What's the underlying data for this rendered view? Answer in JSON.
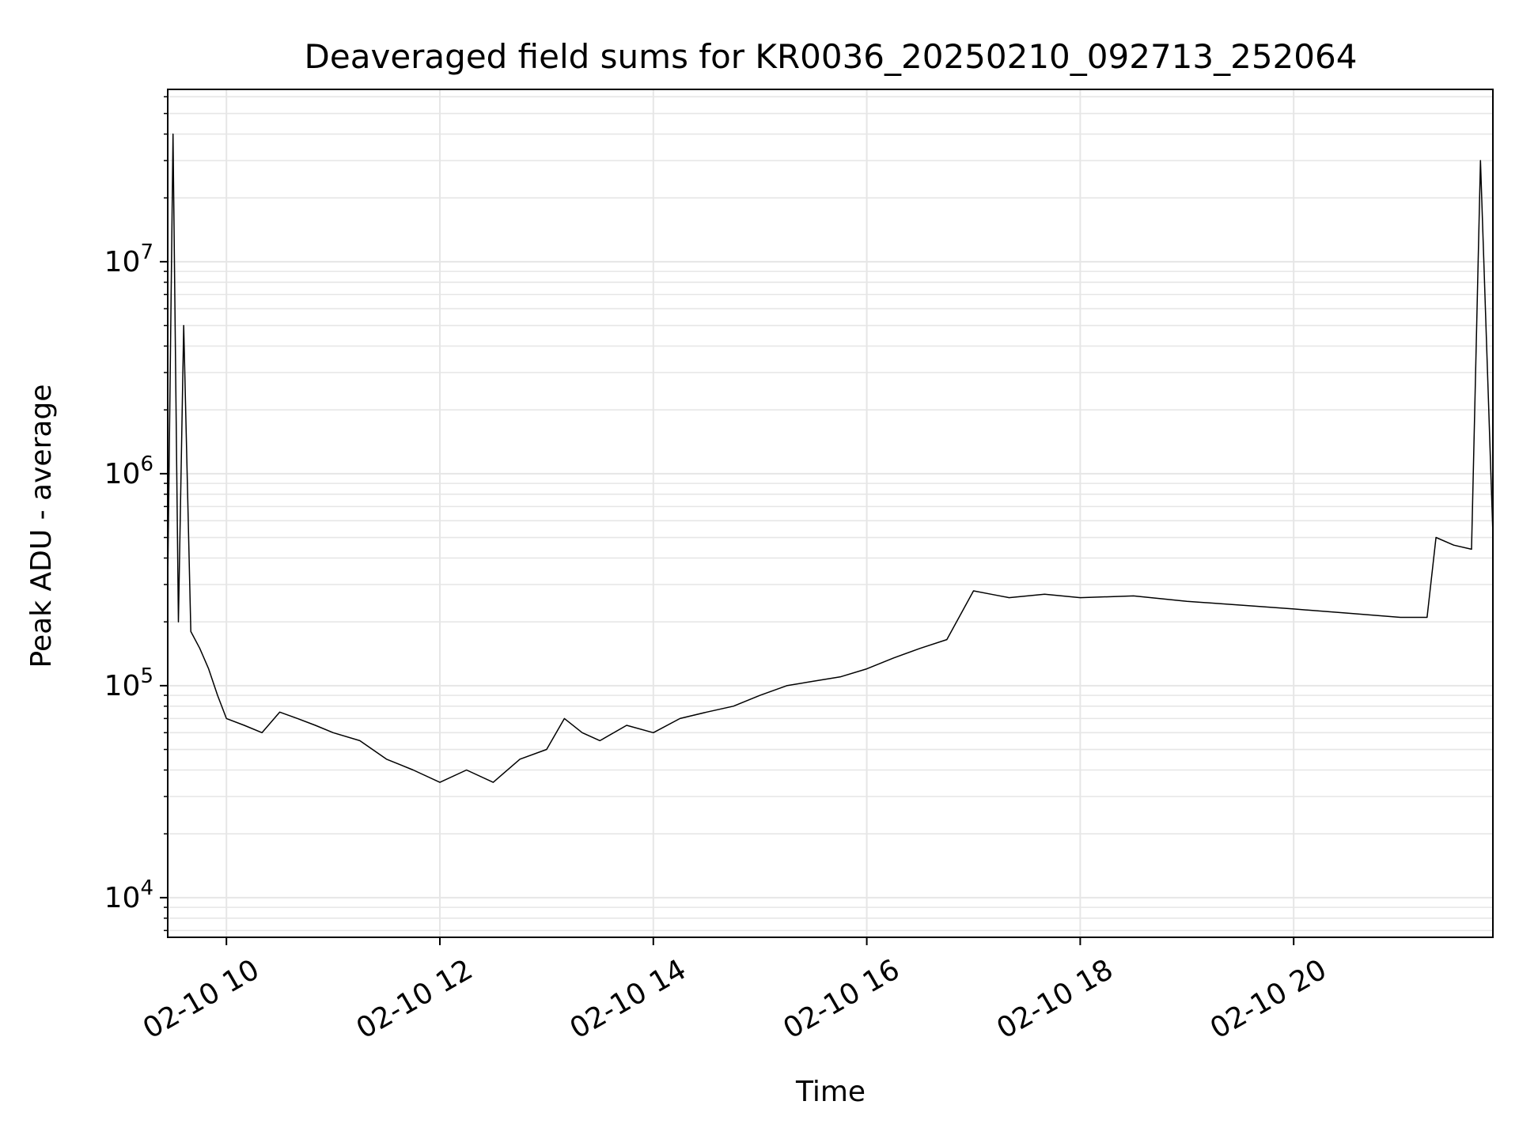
{
  "chart_data": {
    "type": "line",
    "title": "Deaveraged field sums for KR0036_20250210_092713_252064",
    "xlabel": "Time",
    "ylabel": "Peak ADU - average",
    "yscale": "log",
    "xlim": [
      "02-10 09:27",
      "02-10 21:52"
    ],
    "ylim": [
      6500,
      65000000
    ],
    "grid": true,
    "line_color": "#000000",
    "x_ticks": [
      "02-10 10",
      "02-10 12",
      "02-10 14",
      "02-10 16",
      "02-10 18",
      "02-10 20"
    ],
    "y_ticks": [
      {
        "base": "10",
        "exp": "4"
      },
      {
        "base": "10",
        "exp": "5"
      },
      {
        "base": "10",
        "exp": "6"
      },
      {
        "base": "10",
        "exp": "7"
      }
    ],
    "series": [
      {
        "x": [
          "02-10 09:27",
          "02-10 09:30",
          "02-10 09:33",
          "02-10 09:36",
          "02-10 09:40",
          "02-10 09:45",
          "02-10 09:50",
          "02-10 09:55",
          "02-10 10:00",
          "02-10 10:10",
          "02-10 10:20",
          "02-10 10:30",
          "02-10 10:40",
          "02-10 10:50",
          "02-10 11:00",
          "02-10 11:15",
          "02-10 11:30",
          "02-10 11:45",
          "02-10 12:00",
          "02-10 12:15",
          "02-10 12:30",
          "02-10 12:45",
          "02-10 13:00",
          "02-10 13:10",
          "02-10 13:20",
          "02-10 13:30",
          "02-10 13:45",
          "02-10 14:00",
          "02-10 14:15",
          "02-10 14:30",
          "02-10 14:45",
          "02-10 15:00",
          "02-10 15:15",
          "02-10 15:30",
          "02-10 15:45",
          "02-10 16:00",
          "02-10 16:15",
          "02-10 16:30",
          "02-10 16:45",
          "02-10 17:00",
          "02-10 17:10",
          "02-10 17:20",
          "02-10 17:40",
          "02-10 18:00",
          "02-10 18:30",
          "02-10 19:00",
          "02-10 19:30",
          "02-10 20:00",
          "02-10 20:30",
          "02-10 21:00",
          "02-10 21:15",
          "02-10 21:20",
          "02-10 21:30",
          "02-10 21:40",
          "02-10 21:45",
          "02-10 21:52"
        ],
        "y": [
          300000,
          40000000,
          200000,
          5000000,
          180000,
          150000,
          120000,
          90000,
          70000,
          65000,
          60000,
          75000,
          70000,
          65000,
          60000,
          55000,
          45000,
          40000,
          35000,
          40000,
          35000,
          45000,
          50000,
          70000,
          60000,
          55000,
          65000,
          60000,
          70000,
          75000,
          80000,
          90000,
          100000,
          105000,
          110000,
          120000,
          135000,
          150000,
          165000,
          280000,
          270000,
          260000,
          270000,
          260000,
          265000,
          250000,
          240000,
          230000,
          220000,
          210000,
          210000,
          500000,
          460000,
          440000,
          30000000,
          520000
        ]
      }
    ]
  }
}
